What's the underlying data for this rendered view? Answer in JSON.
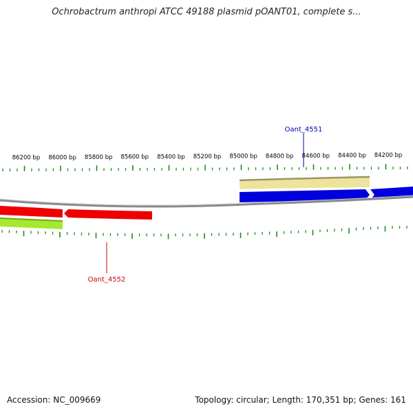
{
  "title": "Ochrobactrum anthropi ATCC 49188 plasmid pOANT01, complete s...",
  "footer": {
    "accession": "Accession: NC_009669",
    "summary": "Topology: circular; Length: 170,351 bp; Genes: 161"
  },
  "colors": {
    "backbone": "#8a8a8a",
    "tick": "#1a8a1a",
    "forward_gene": "#0000dd",
    "reverse_gene": "#ee0000",
    "forward_feature": "#eee39c",
    "reverse_feature": "#a6e82e",
    "gene_label_forward": "#0000aa",
    "gene_label_reverse": "#cc0000"
  },
  "position_ticks": [
    {
      "label": "86200 bp"
    },
    {
      "label": "86000 bp"
    },
    {
      "label": "85800 bp"
    },
    {
      "label": "85600 bp"
    },
    {
      "label": "85400 bp"
    },
    {
      "label": "85200 bp"
    },
    {
      "label": "85000 bp"
    },
    {
      "label": "84800 bp"
    },
    {
      "label": "84600 bp"
    },
    {
      "label": "84400 bp"
    },
    {
      "label": "84200 bp"
    }
  ],
  "genes": {
    "forward": {
      "label": "Oant_4551"
    },
    "reverse": {
      "label": "Oant_4552"
    }
  }
}
